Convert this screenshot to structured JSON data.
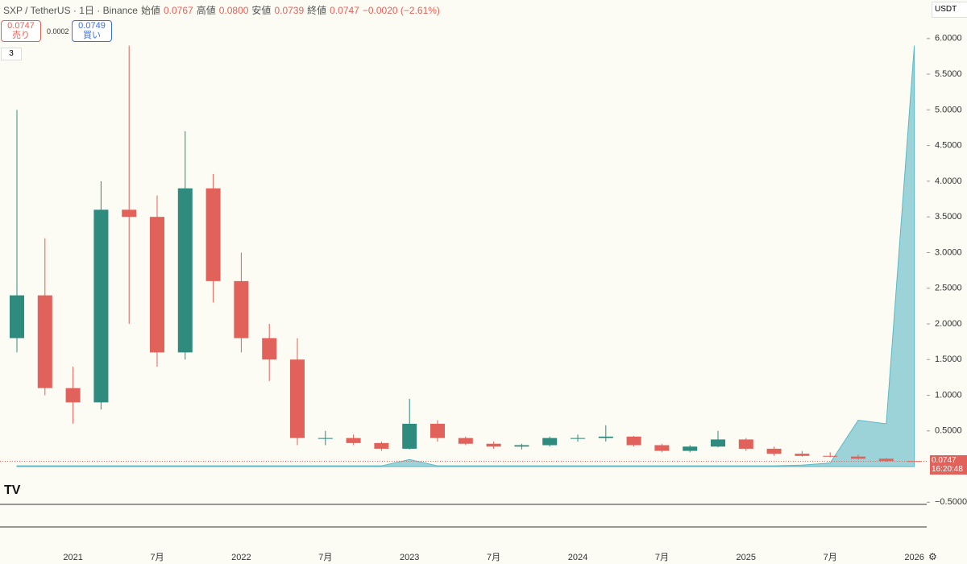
{
  "chart_data": {
    "type": "candlestick",
    "title": "SXP / TetherUS · 1日 · Binance",
    "legend": {
      "open_label": "始値",
      "open": "0.0767",
      "high_label": "高値",
      "high": "0.0800",
      "low_label": "安値",
      "low": "0.0739",
      "close_label": "終値",
      "close": "0.0747",
      "change": "−0.0020 (−2.61%)"
    },
    "x": [
      null,
      null,
      "2021",
      null,
      null,
      "7月",
      null,
      null,
      "2022",
      null,
      null,
      "7月",
      null,
      null,
      "2023",
      null,
      null,
      "7月",
      null,
      null,
      "2024",
      null,
      null,
      "7月",
      null,
      null,
      "2025",
      null,
      null,
      "7月",
      null,
      null,
      "2026"
    ],
    "open": [
      1.8,
      2.4,
      1.1,
      0.9,
      3.6,
      3.5,
      1.6,
      3.9,
      2.6,
      1.8,
      1.5,
      0.4,
      0.4,
      0.33,
      0.25,
      0.6,
      0.4,
      0.32,
      0.28,
      0.3,
      0.4,
      0.4,
      0.42,
      0.3,
      0.22,
      0.28,
      0.38,
      0.25,
      0.18,
      0.15,
      0.14,
      0.11,
      0.0767
    ],
    "high": [
      5.0,
      3.2,
      1.4,
      4.0,
      5.9,
      3.8,
      4.7,
      4.1,
      3.0,
      2.0,
      1.8,
      0.5,
      0.45,
      0.35,
      0.95,
      0.65,
      0.42,
      0.35,
      0.32,
      0.42,
      0.45,
      0.58,
      0.43,
      0.32,
      0.3,
      0.5,
      0.4,
      0.28,
      0.22,
      0.2,
      0.17,
      0.12,
      0.08
    ],
    "low": [
      1.6,
      1.0,
      0.6,
      0.8,
      2.0,
      1.4,
      1.5,
      2.3,
      1.6,
      1.2,
      0.3,
      0.3,
      0.3,
      0.22,
      0.24,
      0.35,
      0.3,
      0.25,
      0.24,
      0.28,
      0.35,
      0.35,
      0.28,
      0.2,
      0.2,
      0.27,
      0.22,
      0.15,
      0.14,
      0.13,
      0.1,
      0.07,
      0.0739
    ],
    "close": [
      2.4,
      1.1,
      0.9,
      3.6,
      3.5,
      1.6,
      3.9,
      2.6,
      1.8,
      1.5,
      0.4,
      0.4,
      0.33,
      0.25,
      0.6,
      0.4,
      0.32,
      0.28,
      0.3,
      0.4,
      0.4,
      0.42,
      0.3,
      0.22,
      0.28,
      0.38,
      0.25,
      0.18,
      0.15,
      0.14,
      0.11,
      0.0767,
      0.0747
    ],
    "volume": [
      0.01,
      0.01,
      0.01,
      0.01,
      0.01,
      0.01,
      0.01,
      0.01,
      0.01,
      0.01,
      0.01,
      0.01,
      0.01,
      0.01,
      0.1,
      0.01,
      0.01,
      0.01,
      0.01,
      0.01,
      0.01,
      0.01,
      0.01,
      0.01,
      0.01,
      0.01,
      0.01,
      0.01,
      0.02,
      0.05,
      0.65,
      0.6,
      5.9
    ],
    "up_color": "#2e8b7d",
    "down_color": "#e0625a",
    "volume_color": "#5bb8c4",
    "ylim": [
      -0.53,
      6.54
    ],
    "yticks": [
      {
        "value": 6,
        "label": "6.0000"
      },
      {
        "value": 5.5,
        "label": "5.5000"
      },
      {
        "value": 5,
        "label": "5.0000"
      },
      {
        "value": 4.5,
        "label": "4.5000"
      },
      {
        "value": 4,
        "label": "4.0000"
      },
      {
        "value": 3.5,
        "label": "3.5000"
      },
      {
        "value": 3,
        "label": "3.0000"
      },
      {
        "value": 2.5,
        "label": "2.5000"
      },
      {
        "value": 2,
        "label": "2.0000"
      },
      {
        "value": 1.5,
        "label": "1.5000"
      },
      {
        "value": 1,
        "label": "1.0000"
      },
      {
        "value": 0.5,
        "label": "0.5000"
      },
      {
        "value": -0.5,
        "label": "−0.5000"
      }
    ]
  },
  "toolbar": {
    "sell_price": "0.0747",
    "sell_label": "売り",
    "spread": "0.0002",
    "buy_price": "0.0749",
    "buy_label": "買い",
    "indicators": "3",
    "currency": "USDT",
    "countdown": "16:20:48"
  }
}
